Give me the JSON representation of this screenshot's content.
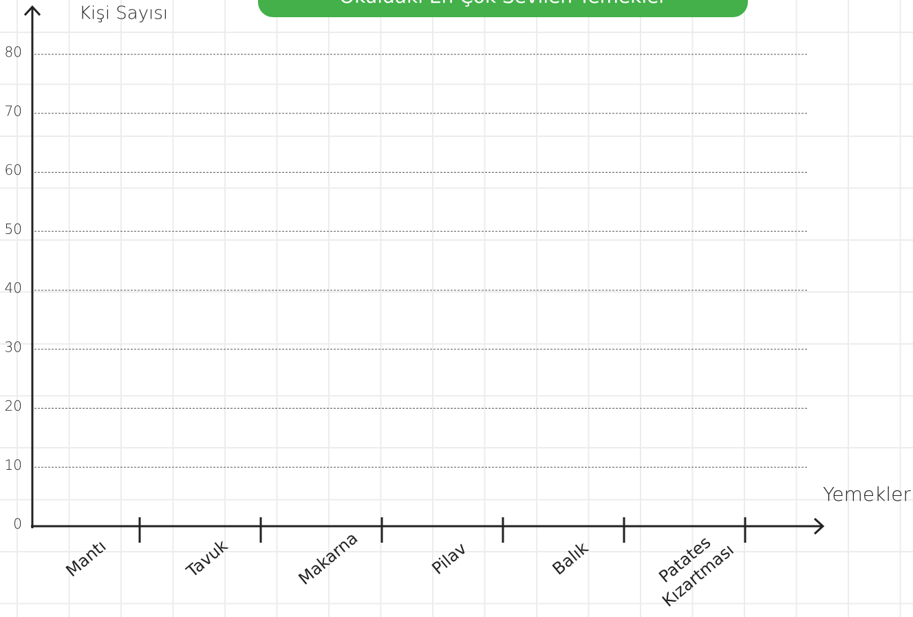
{
  "chart_data": {
    "type": "bar",
    "title": "Okuldaki En Çok Sevilen Yemekler",
    "y_label": "Kişi Sayısı",
    "x_label": "Yemekler",
    "categories": [
      "Mantı",
      "Tavuk",
      "Makarna",
      "Pilav",
      "Balık",
      "Patates\nKızartması"
    ],
    "ylim": [
      0,
      80
    ],
    "yticks": [
      0,
      10,
      20,
      30,
      40,
      50,
      60,
      70,
      80
    ],
    "grid": true,
    "color": "#4caf50"
  }
}
